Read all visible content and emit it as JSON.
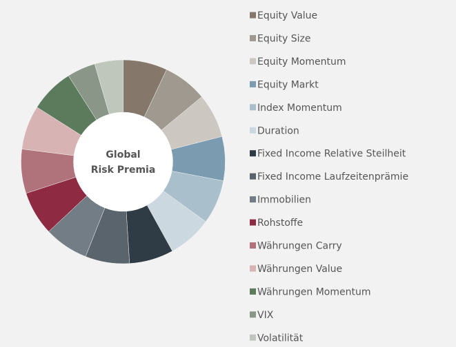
{
  "chart_data": {
    "type": "pie",
    "center_label": [
      "Global",
      "Risk Premia"
    ],
    "categories": [
      "Equity Value",
      "Equity Size",
      "Equity Momentum",
      "Equity Markt",
      "Index Momentum",
      "Duration",
      "Fixed Income Relative Steilheit",
      "Fixed Income Laufzeitenprämie",
      "Immobilien",
      "Rohstoffe",
      "Währungen Carry",
      "Währungen Value",
      "Währungen Momentum",
      "VIX",
      "Volatilität"
    ],
    "values": [
      7,
      7,
      7,
      7,
      7,
      7,
      7,
      7,
      7,
      7,
      7,
      7,
      7,
      4.5,
      4.5
    ],
    "colors": [
      "#85786b",
      "#a09990",
      "#cdc7c1",
      "#7a9bb0",
      "#a9bfcb",
      "#cbd8e0",
      "#2f3c45",
      "#5a646c",
      "#737d85",
      "#8e2a42",
      "#b0737c",
      "#d8b3b3",
      "#5c7a5c",
      "#8a9788",
      "#bfc7bc"
    ],
    "legend": "right"
  }
}
